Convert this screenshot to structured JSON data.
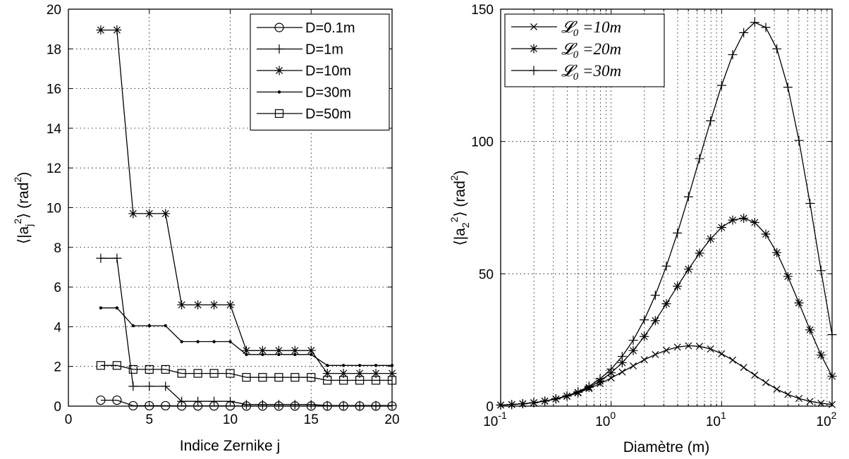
{
  "chart_data": [
    {
      "type": "line",
      "xlabel": "Indice Zernike j",
      "ylabel_main": "⟨|a",
      "ylabel_sub": "j",
      "ylabel_sup": "2",
      "ylabel_rest": "⟩ (rad",
      "ylabel_sup2": "2",
      "ylabel_end": ")",
      "xlim": [
        0,
        20
      ],
      "ylim": [
        0,
        20
      ],
      "xticks": [
        0,
        5,
        10,
        15,
        20
      ],
      "yticks": [
        0,
        2,
        4,
        6,
        8,
        10,
        12,
        14,
        16,
        18,
        20
      ],
      "grid": true,
      "legend_position": "top-right",
      "x": [
        2,
        3,
        4,
        5,
        6,
        7,
        8,
        9,
        10,
        11,
        12,
        13,
        14,
        15,
        16,
        17,
        18,
        19,
        20
      ],
      "series": [
        {
          "name": "D=0.1m",
          "marker": "circle",
          "values": [
            0.3,
            0.3,
            0.02,
            0.02,
            0.02,
            0.01,
            0.01,
            0.01,
            0.01,
            0.005,
            0.005,
            0.005,
            0.005,
            0.005,
            0.003,
            0.003,
            0.003,
            0.003,
            0.003
          ]
        },
        {
          "name": "D=1m",
          "marker": "plus",
          "values": [
            7.45,
            7.45,
            1.0,
            1.0,
            1.0,
            0.24,
            0.24,
            0.24,
            0.24,
            0.08,
            0.08,
            0.08,
            0.08,
            0.08,
            0.03,
            0.03,
            0.03,
            0.03,
            0.03
          ]
        },
        {
          "name": "D=10m",
          "marker": "star",
          "values": [
            18.95,
            18.95,
            9.7,
            9.7,
            9.7,
            5.1,
            5.1,
            5.1,
            5.1,
            2.8,
            2.8,
            2.8,
            2.8,
            2.8,
            1.65,
            1.65,
            1.65,
            1.65,
            1.65
          ]
        },
        {
          "name": "D=30m",
          "marker": "dot",
          "values": [
            4.95,
            4.95,
            4.05,
            4.05,
            4.05,
            3.25,
            3.25,
            3.25,
            3.25,
            2.6,
            2.6,
            2.6,
            2.6,
            2.6,
            2.05,
            2.05,
            2.05,
            2.05,
            2.05
          ]
        },
        {
          "name": "D=50m",
          "marker": "square",
          "values": [
            2.05,
            2.05,
            1.85,
            1.85,
            1.85,
            1.65,
            1.65,
            1.65,
            1.65,
            1.45,
            1.45,
            1.45,
            1.45,
            1.45,
            1.3,
            1.3,
            1.3,
            1.3,
            1.3
          ]
        }
      ]
    },
    {
      "type": "line",
      "xlabel": "Diamètre (m)",
      "ylabel_main": "⟨|a",
      "ylabel_sub": "2",
      "ylabel_sup": "2",
      "ylabel_rest": "⟩ (rad",
      "ylabel_sup2": "2",
      "ylabel_end": ")",
      "xscale": "log",
      "xlim": [
        0.1,
        100
      ],
      "ylim": [
        0,
        150
      ],
      "xticks": [
        {
          "base": "10",
          "exp": "-1"
        },
        {
          "base": "10",
          "exp": "0"
        },
        {
          "base": "10",
          "exp": "1"
        },
        {
          "base": "10",
          "exp": "2"
        }
      ],
      "yticks": [
        0,
        50,
        100,
        150
      ],
      "grid": true,
      "legend_position": "top-left",
      "x": [
        0.1,
        0.1259,
        0.1585,
        0.1995,
        0.2512,
        0.3162,
        0.3981,
        0.5012,
        0.631,
        0.7943,
        1.0,
        1.259,
        1.585,
        1.995,
        2.512,
        3.162,
        3.981,
        5.012,
        6.31,
        7.943,
        10.0,
        12.59,
        15.85,
        19.95,
        25.12,
        31.62,
        39.81,
        50.12,
        63.1,
        79.43,
        100.0
      ],
      "series": [
        {
          "name": "𝓛₀ =10m",
          "legend_prefix": "𝓛",
          "legend_sub": "0",
          "legend_suffix": " =10m",
          "marker": "x",
          "values": [
            0.4,
            0.6,
            0.9,
            1.3,
            1.9,
            2.7,
            3.7,
            5.0,
            6.6,
            8.5,
            10.6,
            12.9,
            15.2,
            17.5,
            19.5,
            21.1,
            22.3,
            22.8,
            22.6,
            21.6,
            19.8,
            17.4,
            14.6,
            11.7,
            8.9,
            6.4,
            4.4,
            2.9,
            1.8,
            1.1,
            0.6
          ]
        },
        {
          "name": "𝓛₀ =20m",
          "legend_prefix": "𝓛",
          "legend_sub": "0",
          "legend_suffix": " =20m",
          "marker": "star",
          "values": [
            0.4,
            0.6,
            0.9,
            1.3,
            1.9,
            2.7,
            3.8,
            5.2,
            7.1,
            9.5,
            12.6,
            16.4,
            21.0,
            26.3,
            32.3,
            38.7,
            45.3,
            51.7,
            57.8,
            63.2,
            67.5,
            70.3,
            71.0,
            69.4,
            65.0,
            58.0,
            49.0,
            39.0,
            28.8,
            19.3,
            11.3
          ]
        },
        {
          "name": "𝓛₀ =30m",
          "legend_prefix": "𝓛",
          "legend_sub": "0",
          "legend_suffix": " =30m",
          "marker": "plus",
          "values": [
            0.4,
            0.6,
            0.9,
            1.3,
            1.9,
            2.8,
            3.9,
            5.4,
            7.5,
            10.3,
            14.0,
            18.8,
            24.9,
            32.6,
            41.9,
            52.9,
            65.4,
            79.1,
            93.5,
            107.8,
            121.2,
            132.8,
            141.1,
            145.0,
            143.1,
            135.0,
            120.5,
            100.4,
            76.6,
            51.2,
            27.0
          ]
        }
      ]
    }
  ]
}
